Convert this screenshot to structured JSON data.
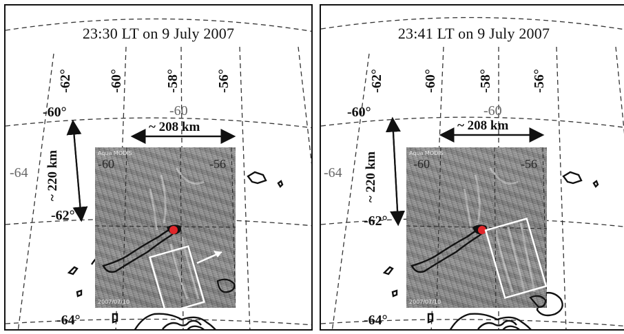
{
  "panels": [
    {
      "title": "23:30 LT on 9 July 2007",
      "lon_top": [
        "-62°",
        "-60°",
        "-58°",
        "-56°"
      ],
      "lat_labels": [
        "-60°",
        "-62°",
        "-64°"
      ],
      "left_lat": "-64",
      "inner_lon": "-60",
      "inner_img_lon": [
        "-60",
        "-56"
      ],
      "distance_h": "~ 208 km",
      "distance_v": "~ 220 km",
      "sat_caption_top": "Aqua MODIS",
      "sat_caption_bottom": "2007/07/10",
      "box_color": "#ffffff",
      "marker_color": "#e0262a"
    },
    {
      "title": "23:41 LT on 9 July 2007",
      "lon_top": [
        "-62°",
        "-60°",
        "-58°",
        "-56°"
      ],
      "lat_labels": [
        "-60°",
        "-62°",
        "-64°"
      ],
      "left_lat": "-64",
      "inner_lon": "-60",
      "inner_img_lon": [
        "-60",
        "-56"
      ],
      "distance_h": "~ 208 km",
      "distance_v": "~ 220 km",
      "sat_caption_top": "Aqua MODIS",
      "sat_caption_bottom": "2007/07/10",
      "box_color": "#ffffff",
      "marker_color": "#e0262a"
    }
  ]
}
